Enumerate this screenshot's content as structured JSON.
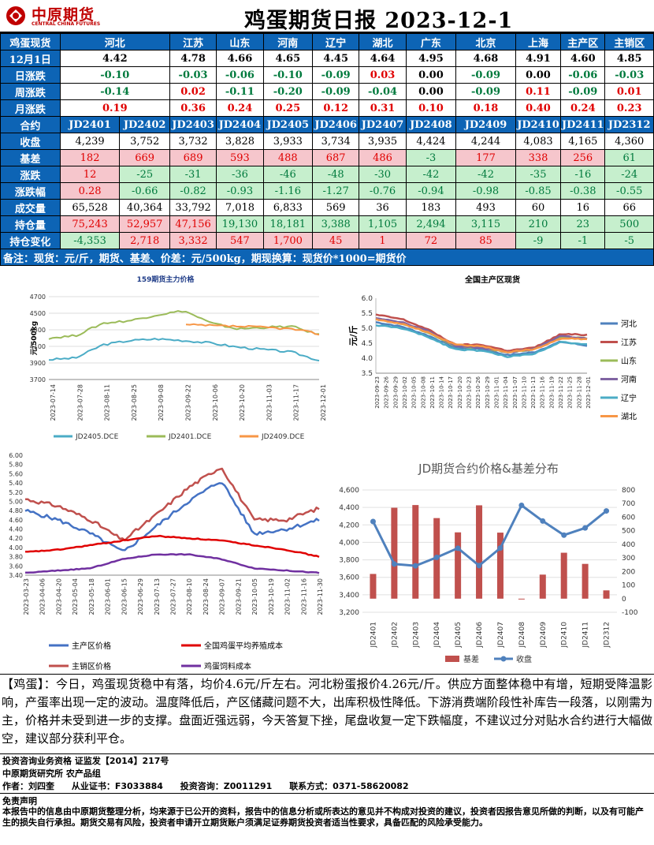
{
  "header": {
    "logo_cn": "中原期货",
    "logo_en": "CENTRAL CHINA FUTURES",
    "title": "鸡蛋期货日报 2023-12-1"
  },
  "spot": {
    "label": "鸡蛋现货",
    "regions": [
      "河北",
      "江苏",
      "山东",
      "河南",
      "辽宁",
      "湖北",
      "广东",
      "北京",
      "上海",
      "主产区",
      "主销区"
    ],
    "rows": [
      {
        "label": "12月1日",
        "values": [
          "4.42",
          "4.78",
          "4.66",
          "4.65",
          "4.45",
          "4.64",
          "4.95",
          "4.68",
          "4.91",
          "4.60",
          "4.85"
        ]
      },
      {
        "label": "日涨跌",
        "values": [
          "-0.10",
          "-0.03",
          "-0.06",
          "-0.10",
          "-0.09",
          "0.03",
          "0.00",
          "-0.09",
          "0.00",
          "-0.06",
          "-0.03"
        ]
      },
      {
        "label": "周涨跌",
        "values": [
          "-0.14",
          "0.02",
          "-0.11",
          "-0.20",
          "-0.09",
          "-0.04",
          "0.00",
          "-0.09",
          "0.11",
          "-0.09",
          "0.01"
        ]
      },
      {
        "label": "月涨跌",
        "values": [
          "0.19",
          "0.36",
          "0.24",
          "0.25",
          "0.12",
          "0.31",
          "0.10",
          "0.18",
          "0.40",
          "0.24",
          "0.23"
        ]
      }
    ]
  },
  "futures": {
    "label": "合约",
    "contracts": [
      "JD2401",
      "JD2402",
      "JD2403",
      "JD2404",
      "JD2405",
      "JD2406",
      "JD2407",
      "JD2408",
      "JD2409",
      "JD2410",
      "JD2411",
      "JD2312"
    ],
    "rows": [
      {
        "label": "收盘",
        "values": [
          "4,239",
          "3,752",
          "3,732",
          "3,828",
          "3,933",
          "3,734",
          "3,935",
          "4,424",
          "4,244",
          "4,083",
          "4,165",
          "4,360"
        ]
      },
      {
        "label": "基差",
        "values": [
          "182",
          "669",
          "689",
          "593",
          "488",
          "687",
          "486",
          "-3",
          "177",
          "338",
          "256",
          "61"
        ]
      },
      {
        "label": "涨跌",
        "values": [
          "12",
          "-25",
          "-31",
          "-36",
          "-46",
          "-48",
          "-30",
          "-42",
          "-42",
          "-35",
          "-16",
          "-24"
        ]
      },
      {
        "label": "涨跌幅",
        "values": [
          "0.28",
          "-0.66",
          "-0.82",
          "-0.93",
          "-1.16",
          "-1.27",
          "-0.76",
          "-0.94",
          "-0.98",
          "-0.85",
          "-0.38",
          "-0.55"
        ]
      },
      {
        "label": "成交量",
        "values": [
          "65,528",
          "40,364",
          "33,792",
          "7,018",
          "6,833",
          "569",
          "36",
          "183",
          "493",
          "60",
          "16",
          "66"
        ]
      },
      {
        "label": "持仓量",
        "values": [
          "75,243",
          "52,957",
          "47,156",
          "19,130",
          "18,181",
          "3,388",
          "1,105",
          "2,494",
          "3,115",
          "210",
          "23",
          "500"
        ]
      },
      {
        "label": "持仓变化",
        "values": [
          "-4,353",
          "2,718",
          "3,332",
          "547",
          "1,700",
          "45",
          "1",
          "72",
          "85",
          "-9",
          "-1",
          "-5"
        ]
      }
    ],
    "note": "备注：现货：元/斤，期货、基差、价差：元/500kg，期现换算：现货价*1000=期货价"
  },
  "charts": {
    "c1": {
      "title": "159期货主力价格",
      "ylabel": "元/500kg",
      "yticks": [
        "4700",
        "4500",
        "4300",
        "4100",
        "3900",
        "3700"
      ],
      "xticks": [
        "2023-07-14",
        "2023-07-28",
        "2023-08-11",
        "2023-08-25",
        "2023-09-08",
        "2023-09-22",
        "2023-10-06",
        "2023-10-20",
        "2023-11-03",
        "2023-11-17",
        "2023-12-01"
      ],
      "legend": [
        "JD2405.DCE",
        "JD2401.DCE",
        "JD2409.DCE"
      ],
      "colors": [
        "#4bacc6",
        "#9bbb59",
        "#f79646"
      ]
    },
    "c2": {
      "title": "全国主产区现货",
      "ylabel": "元/斤",
      "yticks": [
        "6.0",
        "5.5",
        "5.0",
        "4.5",
        "4.0",
        "3.5"
      ],
      "xticks": [
        "2023-09-23",
        "2023-09-26",
        "2023-09-29",
        "2023-10-02",
        "2023-10-05",
        "2023-10-08",
        "2023-10-11",
        "2023-10-14",
        "2023-10-17",
        "2023-10-20",
        "2023-10-23",
        "2023-10-26",
        "2023-10-29",
        "2023-11-01",
        "2023-11-04",
        "2023-11-07",
        "2023-11-10",
        "2023-11-13",
        "2023-11-16",
        "2023-11-19",
        "2023-11-22",
        "2023-11-25",
        "2023-11-28",
        "2023-12-01"
      ],
      "legend": [
        "河北",
        "江苏",
        "山东",
        "河南",
        "辽宁",
        "湖北"
      ],
      "colors": [
        "#4f81bd",
        "#c0504d",
        "#9bbb59",
        "#8064a2",
        "#4bacc6",
        "#f79646"
      ]
    },
    "c3": {
      "yticks": [
        "6.00",
        "5.80",
        "5.60",
        "5.40",
        "5.20",
        "5.00",
        "4.80",
        "4.60",
        "4.40",
        "4.20",
        "4.00",
        "3.80",
        "3.60",
        "3.40"
      ],
      "xticks": [
        "2023-03-23",
        "2023-04-06",
        "2023-04-20",
        "2023-05-04",
        "2023-05-18",
        "2023-06-01",
        "2023-06-15",
        "2023-06-29",
        "2023-07-13",
        "2023-07-27",
        "2023-08-10",
        "2023-08-24",
        "2023-09-07",
        "2023-09-21",
        "2023-10-05",
        "2023-10-19",
        "2023-11-02",
        "2023-11-16",
        "2023-11-30"
      ],
      "legend": [
        "主产区价格",
        "全国鸡蛋平均养殖成本",
        "主销区价格",
        "鸡蛋饲料成本"
      ],
      "colors": [
        "#4472c4",
        "#e00000",
        "#c0504d",
        "#7030a0"
      ]
    },
    "c4": {
      "title": "JD期货合约价格&基差分布",
      "yticks_left": [
        "4,600",
        "4,400",
        "4,200",
        "4,000",
        "3,800",
        "3,600",
        "3,400",
        "3,200"
      ],
      "yticks_right": [
        "800",
        "700",
        "600",
        "500",
        "400",
        "300",
        "200",
        "100",
        "0",
        "-100"
      ],
      "legend": [
        "基差",
        "收盘"
      ],
      "colors": [
        "#c0504d",
        "#4f81bd"
      ]
    }
  },
  "chart_data": [
    {
      "type": "line",
      "title": "159期货主力价格",
      "ylabel": "元/500kg",
      "ylim": [
        3700,
        4700
      ],
      "x": [
        "2023-07-14",
        "2023-07-28",
        "2023-08-11",
        "2023-08-25",
        "2023-09-08",
        "2023-09-22",
        "2023-10-06",
        "2023-10-20",
        "2023-11-03",
        "2023-11-17",
        "2023-12-01"
      ],
      "series": [
        {
          "name": "JD2405.DCE",
          "values": [
            3940,
            3960,
            4120,
            4170,
            4190,
            4170,
            4140,
            4090,
            4060,
            4030,
            3930
          ]
        },
        {
          "name": "JD2401.DCE",
          "values": [
            4200,
            4230,
            4380,
            4410,
            4480,
            4530,
            4380,
            4310,
            4330,
            4340,
            4240
          ]
        },
        {
          "name": "JD2409.DCE",
          "values": [
            null,
            null,
            null,
            null,
            null,
            4360,
            4350,
            4340,
            4330,
            4310,
            4250
          ]
        }
      ]
    },
    {
      "type": "line",
      "title": "全国主产区现货",
      "ylabel": "元/斤",
      "ylim": [
        3.5,
        6.0
      ],
      "x": [
        "2023-09-23",
        "2023-10-02",
        "2023-10-11",
        "2023-10-20",
        "2023-10-29",
        "2023-11-07",
        "2023-11-16",
        "2023-11-25",
        "2023-12-01"
      ],
      "series": [
        {
          "name": "河北",
          "values": [
            5.2,
            5.05,
            4.75,
            4.35,
            4.3,
            4.1,
            4.2,
            4.55,
            4.42
          ]
        },
        {
          "name": "江苏",
          "values": [
            5.45,
            5.3,
            4.95,
            4.45,
            4.45,
            4.25,
            4.35,
            4.8,
            4.78
          ]
        },
        {
          "name": "山东",
          "values": [
            5.3,
            5.15,
            4.85,
            4.4,
            4.35,
            4.2,
            4.3,
            4.7,
            4.66
          ]
        },
        {
          "name": "河南",
          "values": [
            5.35,
            5.2,
            4.9,
            4.4,
            4.35,
            4.2,
            4.3,
            4.75,
            4.65
          ]
        },
        {
          "name": "辽宁",
          "values": [
            5.1,
            5.0,
            4.7,
            4.3,
            4.25,
            4.05,
            4.15,
            4.55,
            4.45
          ]
        },
        {
          "name": "湖北",
          "values": [
            5.3,
            5.15,
            4.85,
            4.45,
            4.4,
            4.2,
            4.3,
            4.65,
            4.64
          ]
        }
      ]
    },
    {
      "type": "line",
      "ylim": [
        3.4,
        6.0
      ],
      "x": [
        "2023-03-23",
        "2023-04-20",
        "2023-05-18",
        "2023-06-15",
        "2023-07-13",
        "2023-08-10",
        "2023-09-07",
        "2023-10-05",
        "2023-11-02",
        "2023-11-30"
      ],
      "series": [
        {
          "name": "主产区价格",
          "values": [
            4.8,
            4.6,
            4.3,
            3.9,
            4.45,
            5.0,
            5.45,
            4.3,
            4.4,
            4.6
          ]
        },
        {
          "name": "全国鸡蛋平均养殖成本",
          "values": [
            3.9,
            3.95,
            4.05,
            4.15,
            4.25,
            4.2,
            4.15,
            4.05,
            3.95,
            3.8
          ]
        },
        {
          "name": "主销区价格",
          "values": [
            5.05,
            4.9,
            4.6,
            4.15,
            4.7,
            5.3,
            5.75,
            4.6,
            4.6,
            4.85
          ]
        },
        {
          "name": "鸡蛋饲料成本",
          "values": [
            3.45,
            3.5,
            3.55,
            3.75,
            3.85,
            3.85,
            3.75,
            3.55,
            3.5,
            3.45
          ]
        }
      ]
    },
    {
      "type": "bar",
      "title": "JD期货合约价格&基差分布",
      "categories": [
        "JD2401",
        "JD2402",
        "JD2403",
        "JD2404",
        "JD2405",
        "JD2406",
        "JD2407",
        "JD2408",
        "JD2409",
        "JD2410",
        "JD2411",
        "JD2312"
      ],
      "series": [
        {
          "name": "基差",
          "values": [
            182,
            669,
            689,
            593,
            488,
            687,
            486,
            -3,
            177,
            338,
            256,
            61
          ]
        },
        {
          "name": "收盘",
          "values": [
            4239,
            3752,
            3732,
            3828,
            3933,
            3734,
            3935,
            4424,
            4244,
            4083,
            4165,
            4360
          ]
        }
      ],
      "ylim_left": [
        3200,
        4600
      ],
      "ylim_right": [
        -100,
        800
      ]
    }
  ],
  "commentary": "【鸡蛋】：今日，鸡蛋现货稳中有落，均价4.6元/斤左右。河北粉蛋报价4.26元/斤。供应方面整体稳中有增，短期受降温影响，产蛋率出现一定的波动。温度降低后，产区储藏问题不大，出库积极性降低。下游消费端阶段性补库告一段落，以刚需为主，价格并未受到进一步的支撑。盘面近强远弱，今天答复下挫，尾盘收复一定下跌幅度，不建议过分对贴水合约进行大幅做空，建议部分获利平仓。",
  "info": {
    "line1": "投资咨询业务资格  证监发【2014】217号",
    "line2": "中原期货研究所  农产品组",
    "author": "作者：刘四奎",
    "cert": "从业证书：F3033884",
    "consult": "投资咨询：Z0011291",
    "contact": "联系方式：0371-58620082"
  },
  "disclaimer": {
    "title": "免责声明",
    "text": "本报告中的信息由中原期货整理分析，均来源于已公开的资料，报告中的信息分析或所表达的意见并不构成对投资的建议，投资者因报告意见所做的判断，以及有可能产生的损失自行承担。期货交易有风险，投资者申请开立期货账户须满足证券期货投资者适当性要求，具备匹配的风险承受能力。"
  }
}
